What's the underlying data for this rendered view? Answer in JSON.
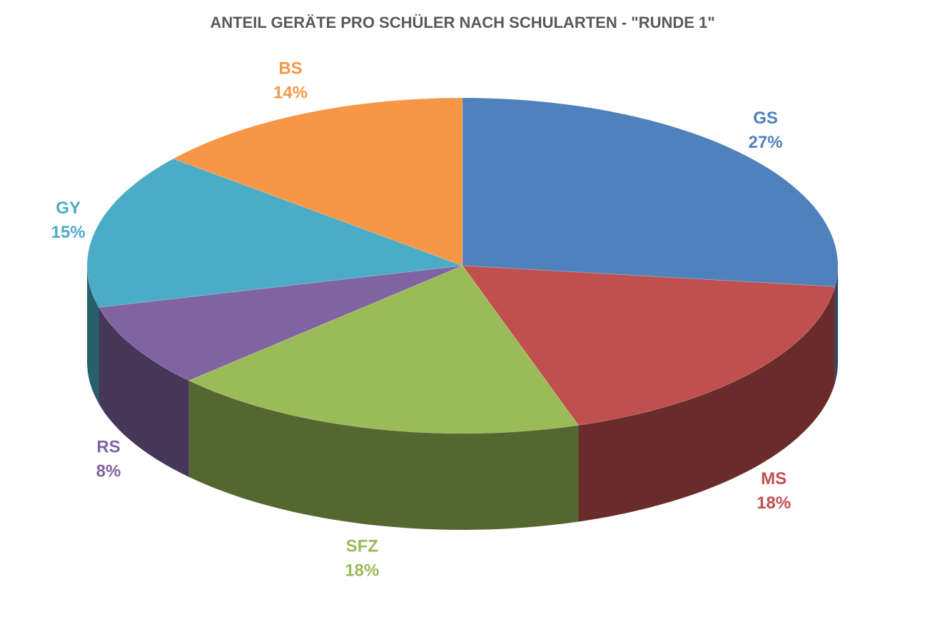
{
  "chart_data": {
    "type": "pie",
    "title": "ANTEIL GERÄTE PRO SCHÜLER NACH SCHULARTEN - \"RUNDE 1\"",
    "categories": [
      "GS",
      "MS",
      "SFZ",
      "RS",
      "GY",
      "BS"
    ],
    "values": [
      27,
      18,
      18,
      8,
      15,
      14
    ],
    "value_labels": [
      "27%",
      "18%",
      "18%",
      "8%",
      "15%",
      "14%"
    ],
    "colors": [
      "#4f81bd",
      "#c0504d",
      "#9bbb59",
      "#8064a2",
      "#4bacc6",
      "#f79646"
    ]
  }
}
